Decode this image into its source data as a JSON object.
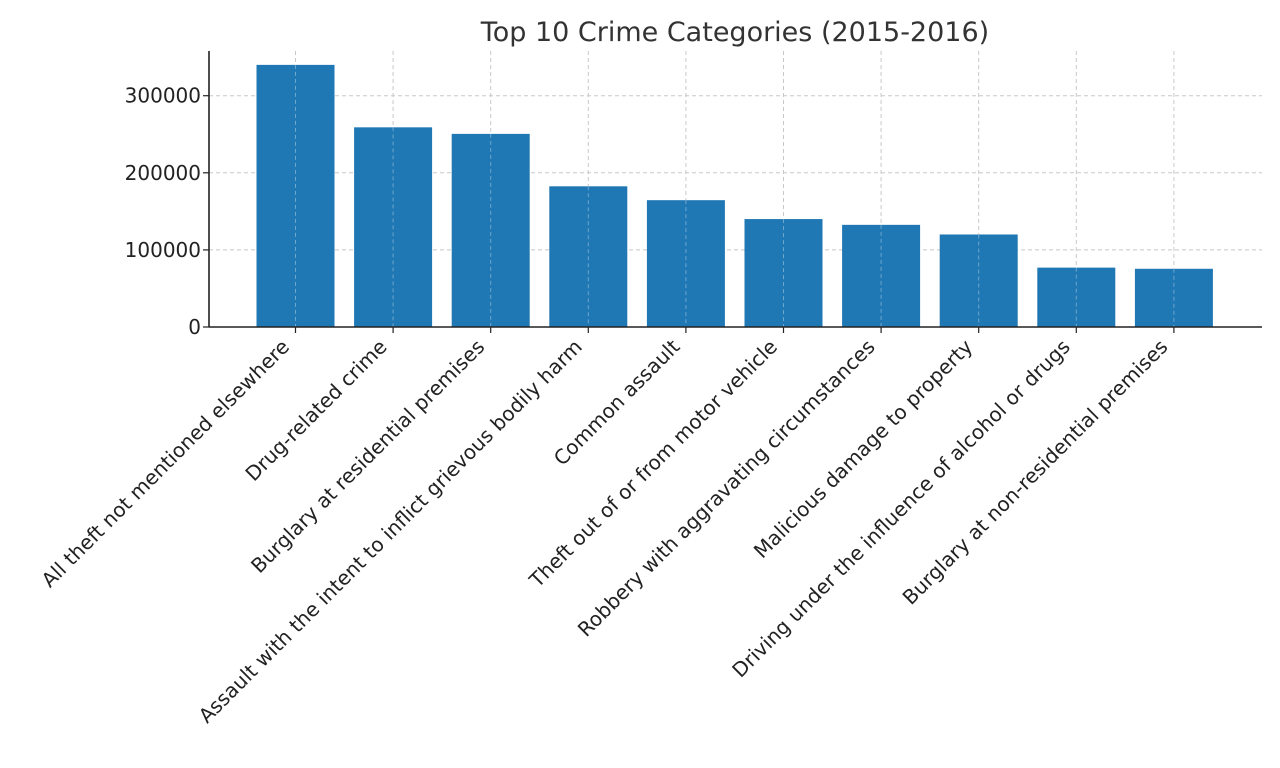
{
  "chart_data": {
    "type": "bar",
    "title": "Top 10 Crime Categories (2015-2016)",
    "xlabel": "",
    "ylabel": "",
    "categories": [
      "All theft not mentioned elsewhere",
      "Drug-related crime",
      "Burglary at residential premises",
      "Assault with the intent to inflict grievous bodily harm",
      "Common assault",
      "Theft out of or from motor vehicle",
      "Robbery with aggravating circumstances",
      "Malicious damage to property",
      "Driving under the influence of alcohol or drugs",
      "Burglary at non-residential premises"
    ],
    "values": [
      340000,
      259000,
      250500,
      182500,
      164500,
      140000,
      132500,
      120000,
      77000,
      75500
    ],
    "ylim": [
      0,
      358000
    ],
    "yticks": [
      0,
      100000,
      200000,
      300000
    ],
    "ytick_labels": [
      "0",
      "100000",
      "200000",
      "300000"
    ],
    "bar_color": "#1f77b4",
    "grid": true,
    "legend": "none"
  }
}
